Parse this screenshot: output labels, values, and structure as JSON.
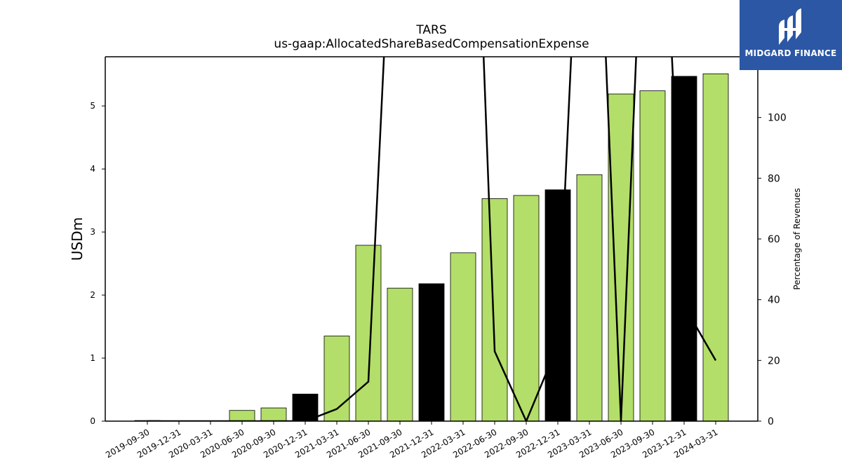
{
  "logo": {
    "text": "MIDGARD FINANCE",
    "icon": "midgard-logo-icon",
    "background": "#2b57a5"
  },
  "chart_data": {
    "type": "bar",
    "title": "TARS",
    "subtitle": "us-gaap:AllocatedShareBasedCompensationExpense",
    "ylabel": "USDm",
    "y2label": "Percentage of Revenues",
    "ylim": [
      0,
      5.78
    ],
    "y2lim": [
      0,
      120
    ],
    "yticks": [
      0,
      1,
      2,
      3,
      4,
      5
    ],
    "y2ticks": [
      0,
      20,
      40,
      60,
      80,
      100
    ],
    "categories": [
      "2019-09-30",
      "2019-12-31",
      "2020-03-31",
      "2020-06-30",
      "2020-09-30",
      "2020-12-31",
      "2021-03-31",
      "2021-06-30",
      "2021-09-30",
      "2021-12-31",
      "2022-03-31",
      "2022-06-30",
      "2022-09-30",
      "2022-12-31",
      "2023-03-31",
      "2023-06-30",
      "2023-09-30",
      "2023-12-31",
      "2024-03-31"
    ],
    "values": [
      0.01,
      0.0,
      0.0,
      0.17,
      0.21,
      0.43,
      1.35,
      2.79,
      2.11,
      2.18,
      2.67,
      3.53,
      3.58,
      3.67,
      3.91,
      5.19,
      5.24,
      5.47,
      5.51
    ],
    "highlight": [
      false,
      false,
      false,
      false,
      false,
      true,
      false,
      false,
      false,
      true,
      false,
      false,
      false,
      true,
      false,
      false,
      false,
      true,
      false
    ],
    "line_values": [
      0,
      0,
      0,
      0,
      0,
      0,
      4,
      13,
      230,
      null,
      300,
      23,
      0,
      25,
      250,
      0,
      250,
      38,
      20
    ],
    "colors": {
      "bar": "#b3de69",
      "bar_highlight": "#000000",
      "edge": "#000000",
      "line": "#000000"
    },
    "grid": false,
    "legend": "none"
  }
}
